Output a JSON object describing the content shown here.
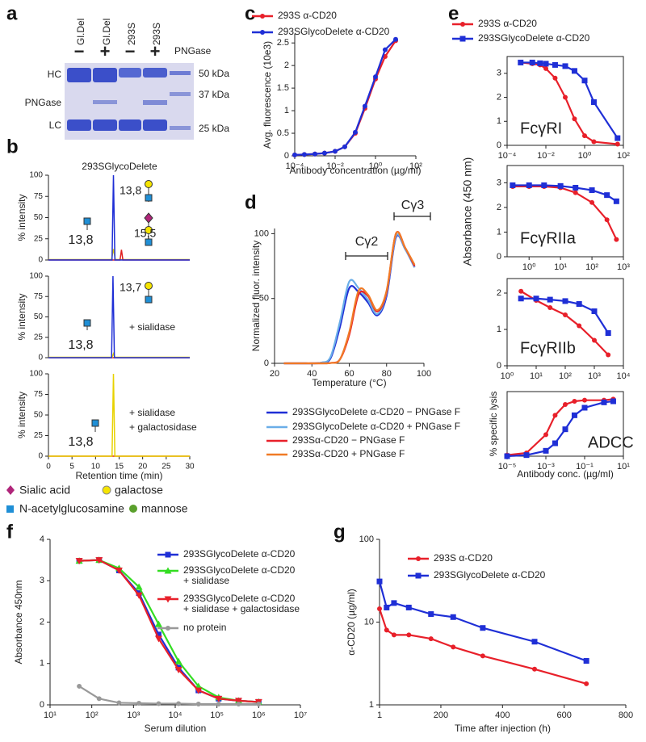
{
  "figure": {
    "panels": [
      "a",
      "b",
      "c",
      "d",
      "e",
      "f",
      "g"
    ],
    "gel": {
      "lanes": [
        "Gl.Del",
        "Gl.Del",
        "293S",
        "293S"
      ],
      "signs": [
        "−",
        "+",
        "−",
        "+"
      ],
      "reagent": "PNGase",
      "bands": [
        "HC",
        "PNGase",
        "LC"
      ],
      "markers": [
        "50 kDa",
        "37 kDa",
        "25 kDa"
      ]
    },
    "glycan_legend": [
      "Sialic acid",
      "galactose",
      "N-acetylglucosamine",
      "mannose"
    ]
  },
  "chart_data": [
    {
      "type": "line",
      "xscale": "log",
      "xlabel": "Antibody concentration (µg/ml)",
      "ylabel": "Avg. fluorescence (10e3)",
      "xlim": [
        0.0001,
        100
      ],
      "xticks": [
        {
          "value": 0.0001,
          "label": "10⁻⁴"
        },
        {
          "value": 0.01,
          "label": "10⁻²"
        },
        {
          "value": 1,
          "label": "10⁰"
        },
        {
          "value": 100,
          "label": "10²"
        }
      ],
      "ylim": [
        0,
        2.7
      ],
      "yticks": [
        0,
        0.5,
        1,
        1.5,
        2,
        2.5
      ],
      "x": [
        0.0001,
        0.0003,
        0.001,
        0.003,
        0.01,
        0.03,
        0.1,
        0.3,
        1,
        3,
        10
      ],
      "series": [
        {
          "name": "293S α-CD20",
          "color": "#e8202a",
          "marker": "circle",
          "values": [
            0.02,
            0.03,
            0.04,
            0.06,
            0.1,
            0.2,
            0.5,
            1.05,
            1.7,
            2.2,
            2.55
          ]
        },
        {
          "name": "293SGlycoDelete α-CD20",
          "color": "#1f2fd6",
          "marker": "circle",
          "values": [
            0.02,
            0.03,
            0.04,
            0.06,
            0.1,
            0.2,
            0.52,
            1.1,
            1.75,
            2.35,
            2.58
          ]
        }
      ]
    },
    {
      "type": "line",
      "xlabel": "Temperature (°C)",
      "ylabel": "Normalized fluor. intensity",
      "xlim": [
        20,
        100
      ],
      "xticks": [
        20,
        40,
        60,
        80,
        100
      ],
      "ylim": [
        0,
        104
      ],
      "yticks": [
        0,
        50,
        100
      ],
      "x": [
        25,
        30,
        35,
        40,
        45,
        50,
        55,
        60,
        65,
        70,
        75,
        80,
        85,
        90,
        95
      ],
      "annotations": [
        {
          "text": "Cγ2"
        },
        {
          "text": "Cγ3"
        }
      ],
      "series": [
        {
          "name": "293SGlycoDelete  α-CD20 − PNGase F",
          "color": "#1f2fd6",
          "values": [
            0,
            0,
            0,
            0,
            0.5,
            4,
            28,
            58,
            55,
            47,
            37,
            52,
            97,
            88,
            74
          ]
        },
        {
          "name": "293SGlycoDelete  α-CD20 + PNGase F",
          "color": "#6aaee8",
          "values": [
            0,
            0,
            0,
            0,
            0.5,
            5,
            32,
            63,
            58,
            49,
            38,
            54,
            98,
            88,
            74
          ]
        },
        {
          "name": "293Sα-CD20 − PNGase F",
          "color": "#e8202a",
          "values": [
            0,
            0,
            0,
            0,
            0,
            0.3,
            3,
            22,
            53,
            52,
            40,
            55,
            100,
            89,
            75
          ]
        },
        {
          "name": "293Sα-CD20 + PNGase F",
          "color": "#f07a26",
          "values": [
            0,
            0,
            0,
            0,
            0,
            0.3,
            3,
            24,
            56,
            53,
            41,
            56,
            100,
            89,
            76
          ]
        }
      ]
    },
    {
      "type": "line",
      "xscale": "log",
      "ylabel": "Absorbance (450 nm)",
      "xlim": [
        0.0001,
        100
      ],
      "xticks": [
        {
          "value": 0.0001,
          "label": "10⁻⁴"
        },
        {
          "value": 0.01,
          "label": "10⁻²"
        },
        {
          "value": 1,
          "label": "10⁰"
        },
        {
          "value": 100,
          "label": "10²"
        }
      ],
      "ylim": [
        0,
        3.7
      ],
      "yticks": [
        0,
        1,
        2,
        3
      ],
      "x": [
        0.0005,
        0.002,
        0.005,
        0.01,
        0.03,
        0.1,
        0.3,
        1,
        3,
        50
      ],
      "annotations": [
        {
          "text": "FcγRI"
        }
      ],
      "series": [
        {
          "name": "293S α-CD20",
          "color": "#e8202a",
          "marker": "circle",
          "values": [
            3.45,
            3.4,
            3.35,
            3.2,
            2.8,
            2.0,
            1.1,
            0.4,
            0.15,
            0.05
          ]
        },
        {
          "name": "293SGlycoDelete α-CD20",
          "color": "#1f2fd6",
          "marker": "square",
          "values": [
            3.45,
            3.45,
            3.42,
            3.4,
            3.35,
            3.3,
            3.1,
            2.7,
            1.8,
            0.3
          ]
        }
      ]
    },
    {
      "type": "line",
      "xscale": "log",
      "xlim": [
        0.2,
        1000
      ],
      "xticks": [
        {
          "value": 1,
          "label": "10⁰"
        },
        {
          "value": 10,
          "label": "10¹"
        },
        {
          "value": 100,
          "label": "10²"
        },
        {
          "value": 1000,
          "label": "10³"
        }
      ],
      "ylim": [
        0,
        3.7
      ],
      "yticks": [
        0,
        1,
        2,
        3
      ],
      "x": [
        0.3,
        1,
        3,
        10,
        30,
        100,
        300,
        600
      ],
      "annotations": [
        {
          "text": "FcγRIIa"
        }
      ],
      "series": [
        {
          "color": "#e8202a",
          "marker": "circle",
          "values": [
            2.85,
            2.85,
            2.85,
            2.8,
            2.6,
            2.2,
            1.5,
            0.7
          ]
        },
        {
          "color": "#1f2fd6",
          "marker": "square",
          "values": [
            2.9,
            2.9,
            2.9,
            2.87,
            2.8,
            2.7,
            2.5,
            2.25
          ]
        }
      ]
    },
    {
      "type": "line",
      "xscale": "log",
      "xlim": [
        1,
        10000
      ],
      "xticks": [
        {
          "value": 1,
          "label": "10⁰"
        },
        {
          "value": 10,
          "label": "10¹"
        },
        {
          "value": 100,
          "label": "10²"
        },
        {
          "value": 1000,
          "label": "10³"
        },
        {
          "value": 10000,
          "label": "10⁴"
        }
      ],
      "ylim": [
        0,
        2.4
      ],
      "yticks": [
        0,
        1,
        2
      ],
      "x": [
        3,
        10,
        30,
        100,
        300,
        1000,
        3000
      ],
      "annotations": [
        {
          "text": "FcγRIIb"
        }
      ],
      "series": [
        {
          "color": "#e8202a",
          "marker": "circle",
          "values": [
            2.05,
            1.8,
            1.6,
            1.4,
            1.1,
            0.7,
            0.3
          ]
        },
        {
          "color": "#1f2fd6",
          "marker": "square",
          "values": [
            1.85,
            1.85,
            1.82,
            1.78,
            1.7,
            1.5,
            0.9
          ]
        }
      ]
    },
    {
      "type": "line",
      "xscale": "log",
      "xlabel": "Antibody conc. (µg/ml)",
      "ylabel": "% specific lysis",
      "xlim": [
        1e-05,
        10
      ],
      "xticks": [
        {
          "value": 1e-05,
          "label": "10⁻⁵"
        },
        {
          "value": 0.001,
          "label": "10⁻³"
        },
        {
          "value": 0.1,
          "label": "10⁻¹"
        },
        {
          "value": 10,
          "label": "10¹"
        }
      ],
      "ylim": [
        0,
        60
      ],
      "x": [
        1e-05,
        0.0001,
        0.001,
        0.003,
        0.01,
        0.03,
        0.1,
        1,
        3
      ],
      "annotations": [
        {
          "text": "ADCC"
        }
      ],
      "series": [
        {
          "color": "#e8202a",
          "marker": "circle",
          "values": [
            1,
            3,
            20,
            38,
            48,
            51,
            52,
            52,
            53
          ]
        },
        {
          "color": "#1f2fd6",
          "marker": "square",
          "values": [
            0,
            1,
            5,
            12,
            25,
            38,
            45,
            50,
            51
          ]
        }
      ]
    },
    {
      "type": "line",
      "xscale": "log",
      "xlabel": "Serum dilution",
      "ylabel": "Absorbance 450nm",
      "xlim": [
        10,
        10000000
      ],
      "xticks": [
        {
          "value": 10,
          "label": "10¹"
        },
        {
          "value": 100,
          "label": "10²"
        },
        {
          "value": 1000,
          "label": "10³"
        },
        {
          "value": 10000,
          "label": "10⁴"
        },
        {
          "value": 100000,
          "label": "10⁵"
        },
        {
          "value": 1000000,
          "label": "10⁶"
        },
        {
          "value": 10000000,
          "label": "10⁷"
        }
      ],
      "ylim": [
        0,
        4
      ],
      "yticks": [
        0,
        1,
        2,
        3,
        4
      ],
      "x": [
        50,
        150,
        450,
        1350,
        4000,
        12000,
        36000,
        110000,
        330000,
        1000000
      ],
      "series": [
        {
          "name": "293SGlycoDelete  α-CD20",
          "color": "#1f2fd6",
          "marker": "square",
          "values": [
            3.48,
            3.5,
            3.25,
            2.7,
            1.7,
            0.9,
            0.35,
            0.15,
            0.1,
            0.07
          ]
        },
        {
          "name": "293SGlycoDelete  α-CD20\n+ sialidase",
          "color": "#33dd22",
          "marker": "triangle",
          "values": [
            3.48,
            3.5,
            3.3,
            2.85,
            1.95,
            1.05,
            0.45,
            0.18,
            0.1,
            0.07
          ]
        },
        {
          "name": "293SGlycoDelete  α-CD20\n+ sialidase + galactosidase",
          "color": "#e8202a",
          "marker": "triangle-down",
          "values": [
            3.48,
            3.5,
            3.25,
            2.65,
            1.6,
            0.85,
            0.35,
            0.15,
            0.1,
            0.07
          ]
        },
        {
          "name": "no protein",
          "color": "#999999",
          "marker": "circle",
          "values": [
            0.45,
            0.15,
            0.05,
            0.04,
            0.03,
            0.03,
            0.02,
            0.02,
            0.02,
            0.02
          ]
        }
      ]
    },
    {
      "type": "line",
      "yscale": "log",
      "xlabel": "Time after injection (h)",
      "ylabel": "α-CD20 (µg/ml)",
      "xlim": [
        1,
        800
      ],
      "xticks": [
        1,
        200,
        400,
        600,
        800
      ],
      "ylim": [
        1,
        100
      ],
      "yticks": [
        1,
        10,
        100
      ],
      "x": [
        1,
        24,
        48,
        96,
        168,
        240,
        336,
        504,
        672
      ],
      "series": [
        {
          "name": "293S α-CD20",
          "color": "#e8202a",
          "marker": "circle",
          "values": [
            14.5,
            8,
            7,
            7,
            6.3,
            5,
            3.9,
            2.7,
            1.8
          ]
        },
        {
          "name": "293SGlycoDelete α-CD20",
          "color": "#1f2fd6",
          "marker": "square",
          "values": [
            31,
            15,
            17,
            15,
            12.5,
            11.5,
            8.5,
            5.8,
            3.4
          ]
        }
      ]
    },
    {
      "type": "line",
      "title": "293SGlycoDelete",
      "ylabel": "% intensity",
      "xlim": [
        0,
        30
      ],
      "ylim": [
        0,
        100
      ],
      "yticks": [
        0,
        25,
        50,
        75,
        100
      ],
      "annotations": [
        {
          "text": "13,8",
          "color": "#1f2fd6"
        },
        {
          "text": "13,8",
          "color": "#c8b400"
        },
        {
          "text": "15,5",
          "color": "#e02020"
        }
      ],
      "series": [
        {
          "color": "#e8d200",
          "x": [
            0,
            5,
            13.4,
            13.8,
            14.2,
            20,
            30
          ],
          "values": [
            0.5,
            0.5,
            0.5,
            13,
            0.5,
            0.5,
            0.5
          ]
        },
        {
          "color": "#e02020",
          "x": [
            0,
            15.2,
            15.5,
            15.8,
            30
          ],
          "values": [
            0,
            0,
            12,
            0,
            0
          ]
        },
        {
          "color": "#1f2fd6",
          "x": [
            0,
            13.5,
            13.8,
            14.1,
            30
          ],
          "values": [
            0,
            0,
            100,
            0,
            0
          ]
        }
      ]
    },
    {
      "type": "line",
      "ylabel": "% intensity",
      "xlim": [
        0,
        30
      ],
      "ylim": [
        0,
        100
      ],
      "yticks": [
        0,
        25,
        50,
        75,
        100
      ],
      "annotations": [
        {
          "text": "13,7",
          "color": "#1f2fd6"
        },
        {
          "text": "13,8",
          "color": "#c8b400"
        },
        {
          "text": "+ sialidase"
        }
      ],
      "series": [
        {
          "color": "#e02020",
          "x": [
            0,
            30
          ],
          "values": [
            0,
            0
          ]
        },
        {
          "color": "#e8d200",
          "x": [
            0,
            13.5,
            13.8,
            14.1,
            30
          ],
          "values": [
            0.5,
            0.5,
            5,
            0.5,
            0.5
          ]
        },
        {
          "color": "#1f2fd6",
          "x": [
            0,
            13.4,
            13.7,
            14.0,
            30
          ],
          "values": [
            0,
            0,
            100,
            0,
            0
          ]
        }
      ]
    },
    {
      "type": "line",
      "ylabel": "% intensity",
      "xlabel": "Retention time (min)",
      "xlim": [
        0,
        30
      ],
      "xticks": [
        0,
        5,
        10,
        15,
        20,
        25,
        30
      ],
      "ylim": [
        0,
        100
      ],
      "yticks": [
        0,
        25,
        50,
        75,
        100
      ],
      "annotations": [
        {
          "text": "13,8",
          "color": "#c8b400"
        },
        {
          "text": "+ sialidase"
        },
        {
          "text": "+ galactosidase"
        }
      ],
      "series": [
        {
          "color": "#e02020",
          "x": [
            0,
            30
          ],
          "values": [
            0,
            0
          ]
        },
        {
          "color": "#e8d200",
          "x": [
            0,
            13.5,
            13.8,
            14.1,
            30
          ],
          "values": [
            0,
            0,
            100,
            0,
            0
          ]
        }
      ]
    }
  ]
}
